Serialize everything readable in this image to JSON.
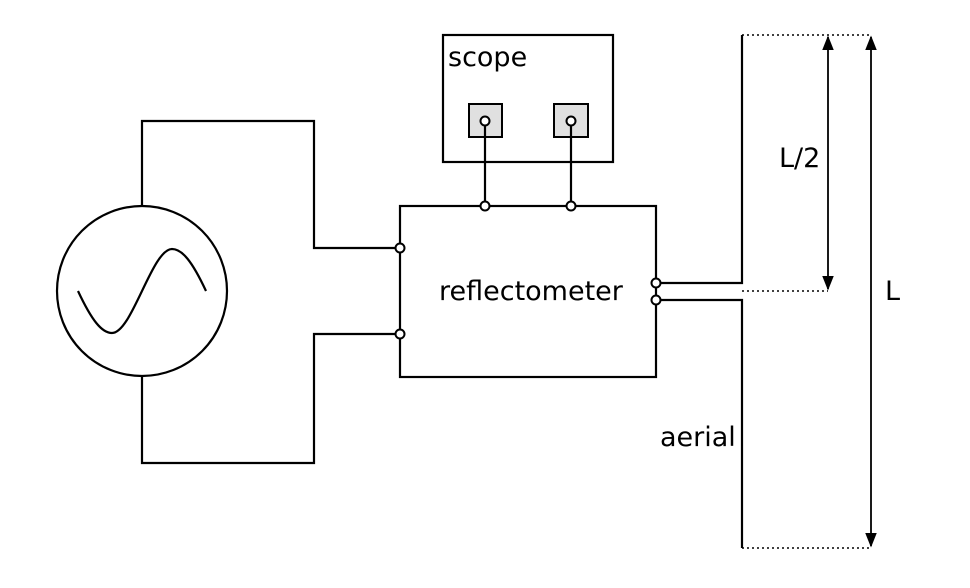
{
  "labels": {
    "scope": "scope",
    "reflectometer": "reflectometer",
    "half_length": "L/2",
    "length": "L",
    "aerial": "aerial"
  }
}
